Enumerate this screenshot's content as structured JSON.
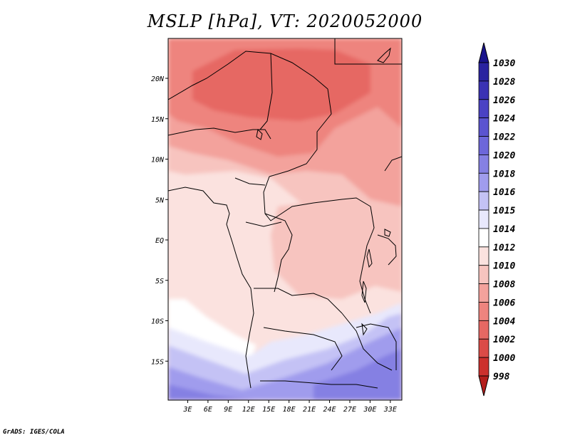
{
  "title": "MSLP [hPa], VT: 2020052000",
  "credit": "GrADS: IGES/COLA",
  "map": {
    "variable": "MSLP",
    "units": "hPa",
    "valid_time": "2020052000",
    "lat_labels": [
      "20N",
      "15N",
      "10N",
      "5N",
      "EQ",
      "5S",
      "10S",
      "15S"
    ],
    "lat_values": [
      20,
      15,
      10,
      5,
      0,
      -5,
      -10,
      -15
    ],
    "lon_labels": [
      "3E",
      "6E",
      "9E",
      "12E",
      "15E",
      "18E",
      "21E",
      "24E",
      "27E",
      "30E",
      "33E"
    ],
    "lon_values": [
      3,
      6,
      9,
      12,
      15,
      18,
      21,
      24,
      27,
      30,
      33
    ]
  },
  "colorbar": {
    "labels": [
      "1030",
      "1028",
      "1026",
      "1024",
      "1022",
      "1020",
      "1018",
      "1016",
      "1015",
      "1014",
      "1012",
      "1010",
      "1008",
      "1006",
      "1004",
      "1002",
      "1000",
      "998"
    ],
    "colors": [
      "#1a148c",
      "#2a23a0",
      "#3a32b4",
      "#4a42c4",
      "#5b54d0",
      "#6d67da",
      "#8580e3",
      "#a09ced",
      "#c4c2f5",
      "#e8e8fc",
      "#ffffff",
      "#fbe2df",
      "#f7c4bf",
      "#f3a29c",
      "#ee847e",
      "#e66863",
      "#db4b47",
      "#cc302d",
      "#b41e1c"
    ]
  }
}
